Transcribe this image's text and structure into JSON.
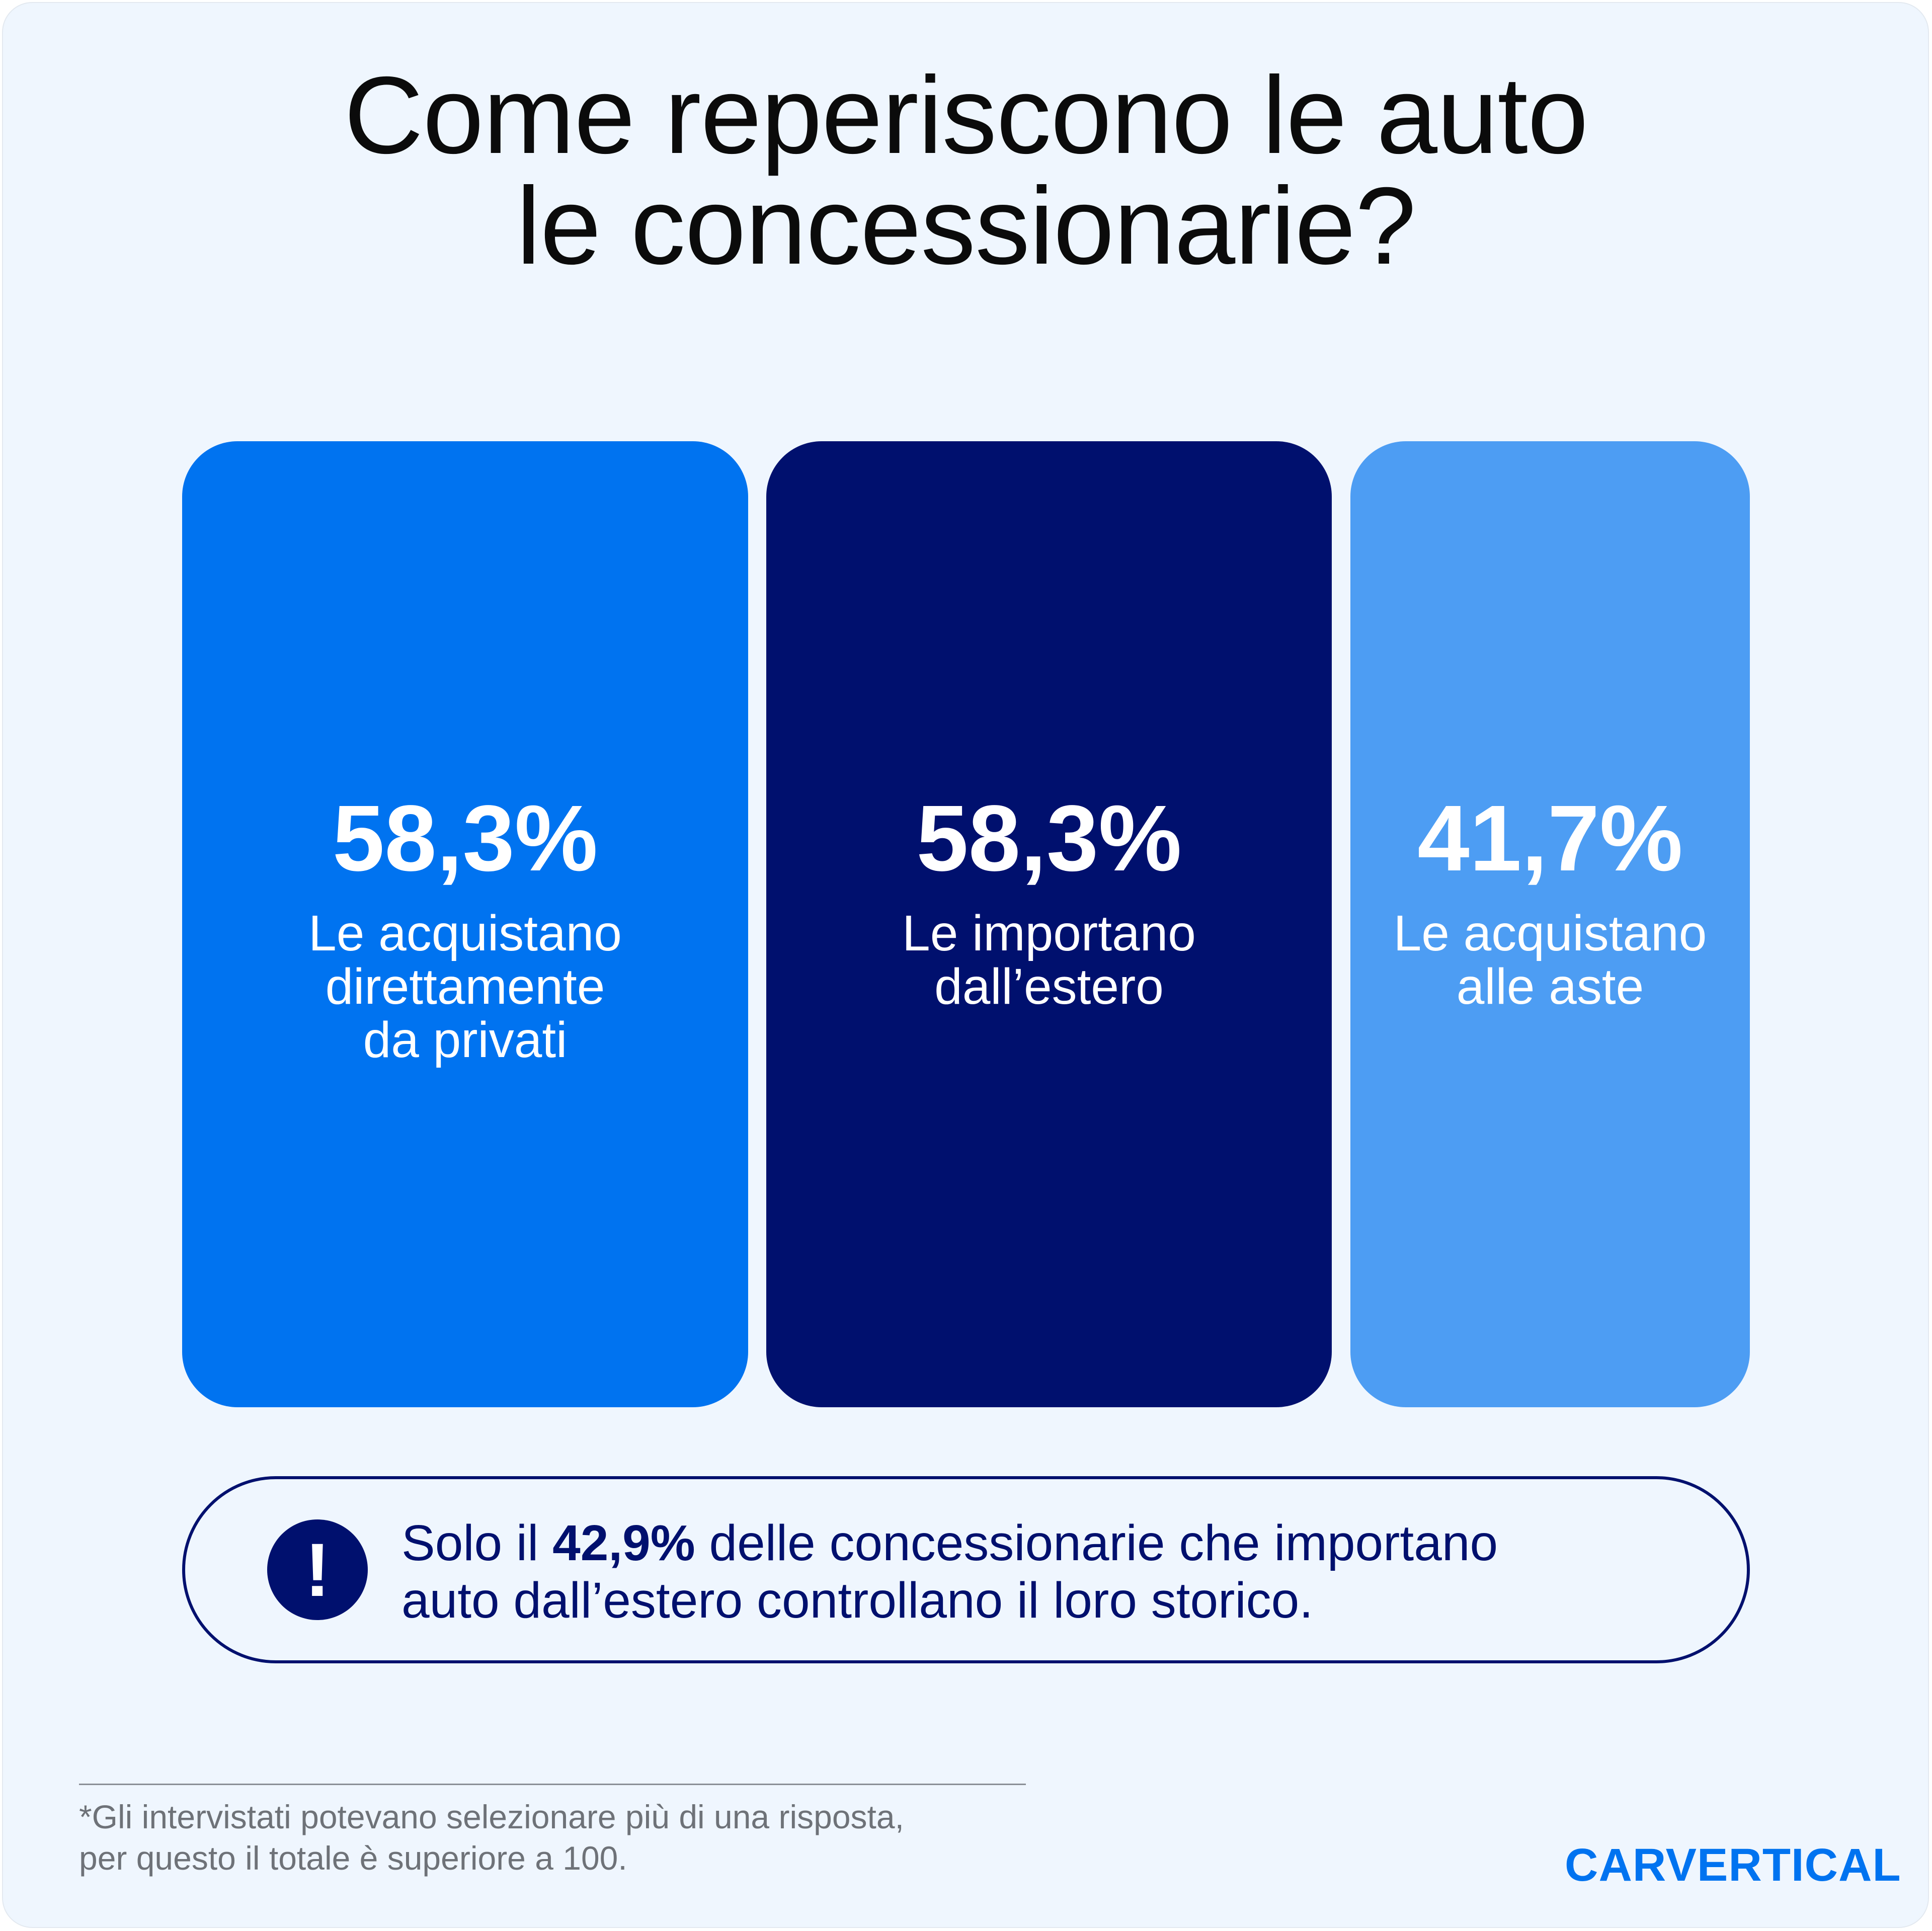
{
  "title": {
    "line1": "Come reperiscono le auto",
    "line2": "le concessionarie?"
  },
  "cards": [
    {
      "value": "58,3%",
      "label1": "Le acquistano",
      "label2": "direttamente",
      "label3": "da privati",
      "color": "#0073f0"
    },
    {
      "value": "58,3%",
      "label1": "Le importano",
      "label2": "dall’estero",
      "color": "#00106e"
    },
    {
      "value": "41,7%",
      "label1": "Le acquistano",
      "label2": "alle aste",
      "color": "#4d9df3"
    }
  ],
  "callout": {
    "icon": "exclamation-icon",
    "icon_glyph": "!",
    "pre": "Solo il ",
    "highlight": "42,9%",
    "post": " delle concessionarie che importano",
    "line2": "auto dall’estero controllano il loro storico."
  },
  "footnote": {
    "line1": "*Gli intervistati potevano selezionare più di una risposta,",
    "line2": "per questo il totale è superiore a 100."
  },
  "logo": {
    "text": "CARVERTICAL",
    "color": "#0073f0"
  }
}
